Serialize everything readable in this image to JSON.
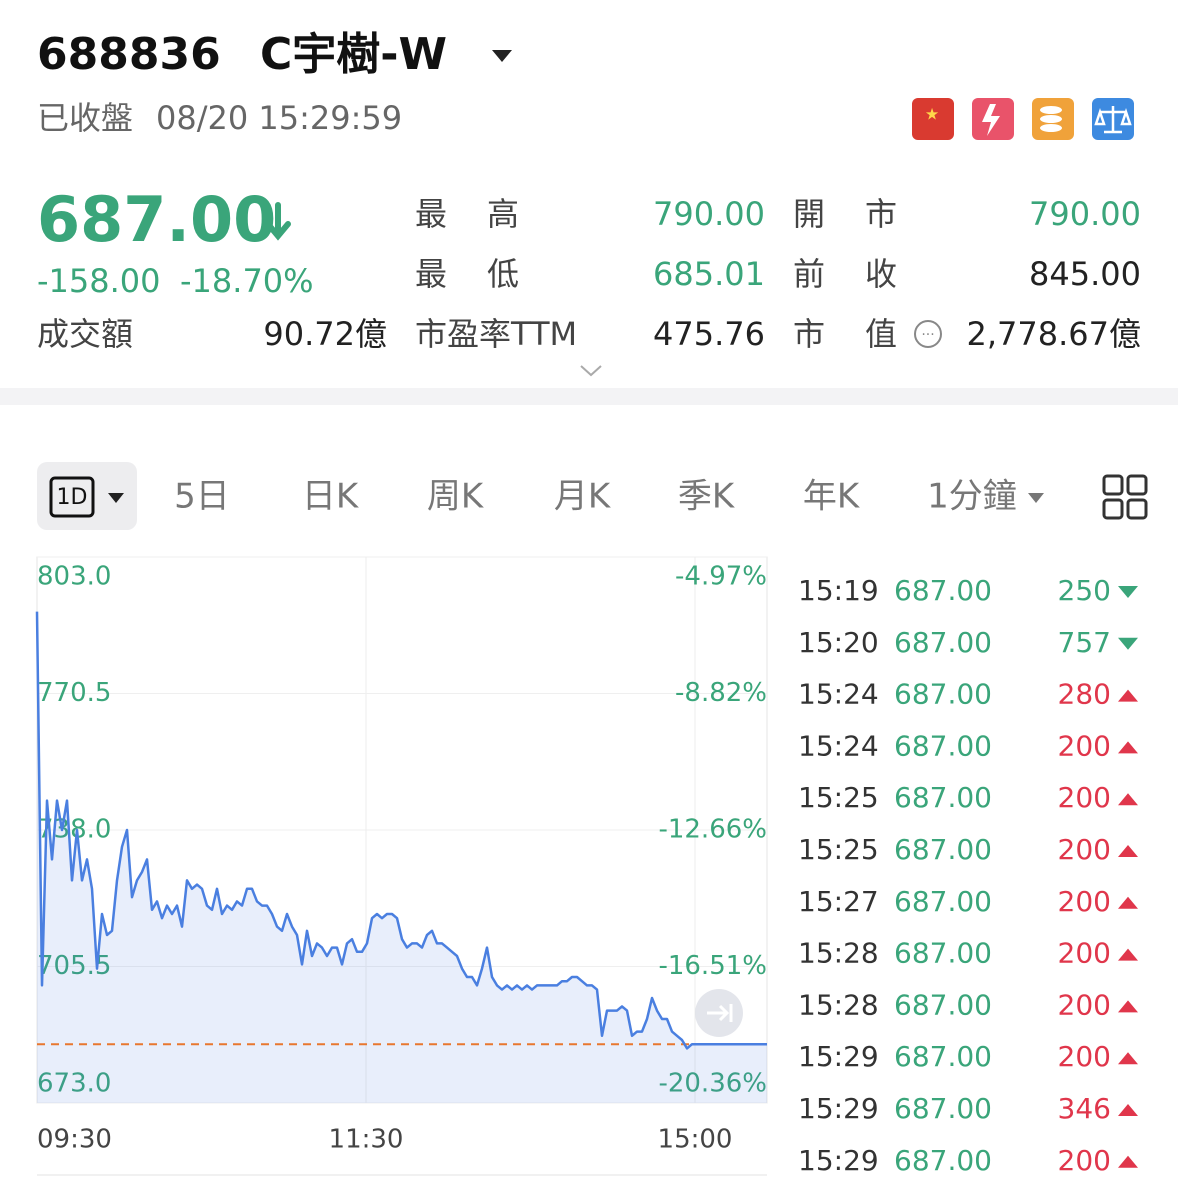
{
  "header": {
    "code": "688836",
    "name": "C宇樹-W",
    "status": "已收盤",
    "datetime": "08/20 15:29:59"
  },
  "quote": {
    "price": "687.00",
    "change": "-158.00",
    "change_pct": "-18.70%",
    "color": "#3aa57a"
  },
  "stats": [
    [
      {
        "label": "成交額",
        "value": "90.72億",
        "color": "#222222"
      }
    ],
    [
      {
        "label": "最高",
        "value": "790.00",
        "color": "#3aa57a"
      },
      {
        "label": "最低",
        "value": "685.01",
        "color": "#3aa57a"
      },
      {
        "label": "市盈率TTM",
        "value": "475.76",
        "color": "#222222"
      }
    ],
    [
      {
        "label": "開市",
        "value": "790.00",
        "color": "#3aa57a"
      },
      {
        "label": "前收",
        "value": "845.00",
        "color": "#222222"
      },
      {
        "label": "市值",
        "value": "2,778.67億",
        "color": "#222222"
      }
    ]
  ],
  "tabs": [
    "1D",
    "5日",
    "日K",
    "周K",
    "月K",
    "季K",
    "年K",
    "1分鐘"
  ],
  "active_tab": 0,
  "chart_data": {
    "type": "line",
    "color": "#4a7fe0",
    "values": [
      790,
      701,
      745,
      731,
      745,
      738,
      745,
      726,
      738,
      726,
      731,
      724,
      705,
      718,
      713,
      714,
      726,
      734,
      738,
      722,
      726,
      728,
      731,
      719,
      721,
      717,
      720,
      718,
      720,
      715,
      726,
      724,
      725,
      724,
      720,
      719,
      724,
      718,
      720,
      719,
      721,
      720,
      724,
      724,
      721,
      720,
      720,
      718,
      715,
      714,
      718,
      715,
      713,
      706,
      714,
      708,
      711,
      710,
      708,
      710,
      710,
      706,
      711,
      712,
      709,
      709,
      711,
      717,
      718,
      717,
      718,
      718,
      717,
      712,
      710,
      711,
      711,
      710,
      713,
      714,
      711,
      711,
      710,
      709,
      708,
      705,
      703,
      703,
      701,
      705,
      710,
      703,
      701,
      700,
      701,
      700,
      701,
      700,
      701,
      700,
      701,
      701,
      701,
      701,
      701,
      702,
      702,
      703,
      703,
      702,
      701,
      701,
      700,
      689,
      695,
      695,
      695,
      696,
      695,
      689,
      690,
      690,
      693,
      698,
      695,
      693,
      693,
      690,
      689,
      688,
      686,
      687,
      687,
      687,
      687,
      687,
      687,
      687,
      687,
      687,
      687,
      687,
      687,
      687,
      687,
      687,
      687
    ],
    "ylim": [
      673,
      803
    ],
    "yticks": [
      {
        "value": 803,
        "label": "803.0"
      },
      770.5,
      {
        "value": 738,
        "label": "738.0"
      },
      705.5,
      {
        "value": 673,
        "label": "673.0"
      }
    ],
    "y2lim": [
      -20.36,
      -4.97
    ],
    "y2ticks": [
      {
        "value": -4.97,
        "label": "-4.97%"
      },
      {
        "value": -8.82,
        "label": "-8.82%"
      },
      {
        "value": -12.66,
        "label": "-12.66%"
      },
      {
        "value": -16.51,
        "label": "-16.51%"
      },
      {
        "value": -20.36,
        "label": "-20.36%"
      }
    ],
    "xtick_labels": [
      "09:30",
      "11:30",
      "15:00"
    ],
    "ref_line": 687,
    "ref_color": "#e8772e"
  },
  "trades": [
    {
      "time": "15:19",
      "price": "687.00",
      "volume": "250",
      "direction": "down"
    },
    {
      "time": "15:20",
      "price": "687.00",
      "volume": "757",
      "direction": "down"
    },
    {
      "time": "15:24",
      "price": "687.00",
      "volume": "280",
      "direction": "up"
    },
    {
      "time": "15:24",
      "price": "687.00",
      "volume": "200",
      "direction": "up"
    },
    {
      "time": "15:25",
      "price": "687.00",
      "volume": "200",
      "direction": "up"
    },
    {
      "time": "15:25",
      "price": "687.00",
      "volume": "200",
      "direction": "up"
    },
    {
      "time": "15:27",
      "price": "687.00",
      "volume": "200",
      "direction": "up"
    },
    {
      "time": "15:28",
      "price": "687.00",
      "volume": "200",
      "direction": "up"
    },
    {
      "time": "15:28",
      "price": "687.00",
      "volume": "200",
      "direction": "up"
    },
    {
      "time": "15:29",
      "price": "687.00",
      "volume": "200",
      "direction": "up"
    },
    {
      "time": "15:29",
      "price": "687.00",
      "volume": "346",
      "direction": "up"
    },
    {
      "time": "15:29",
      "price": "687.00",
      "volume": "200",
      "direction": "up"
    }
  ]
}
